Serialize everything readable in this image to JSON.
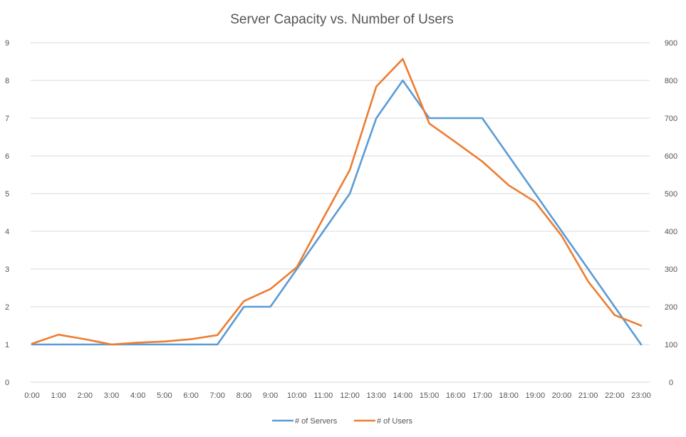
{
  "chart_data": {
    "type": "line",
    "title": "Server Capacity vs. Number of Users",
    "categories": [
      "0:00",
      "1:00",
      "2:00",
      "3:00",
      "4:00",
      "5:00",
      "6:00",
      "7:00",
      "8:00",
      "9:00",
      "10:00",
      "11:00",
      "12:00",
      "13:00",
      "14:00",
      "15:00",
      "16:00",
      "17:00",
      "18:00",
      "19:00",
      "20:00",
      "21:00",
      "22:00",
      "23:00"
    ],
    "y_left": {
      "min": 0,
      "max": 9,
      "ticks": [
        "0",
        "1",
        "2",
        "3",
        "4",
        "5",
        "6",
        "7",
        "8",
        "9"
      ]
    },
    "y_right": {
      "min": 0,
      "max": 900,
      "ticks": [
        "0",
        "100",
        "200",
        "300",
        "400",
        "500",
        "600",
        "700",
        "800",
        "900"
      ]
    },
    "grid": true,
    "legend_position": "bottom",
    "series": [
      {
        "name": "# of Servers",
        "axis": "left",
        "color": "#5b9bd5",
        "values": [
          1,
          1,
          1,
          1,
          1,
          1,
          1,
          1,
          2,
          2,
          3,
          4,
          5,
          7,
          8,
          7,
          7,
          7,
          6,
          5,
          4,
          3,
          2,
          1
        ]
      },
      {
        "name": "# of Users",
        "axis": "right",
        "color": "#ed7d31",
        "values": [
          102,
          126,
          114,
          100,
          105,
          108,
          114,
          125,
          215,
          247,
          305,
          435,
          563,
          784,
          857,
          686,
          636,
          585,
          522,
          478,
          388,
          267,
          178,
          150
        ]
      }
    ]
  }
}
